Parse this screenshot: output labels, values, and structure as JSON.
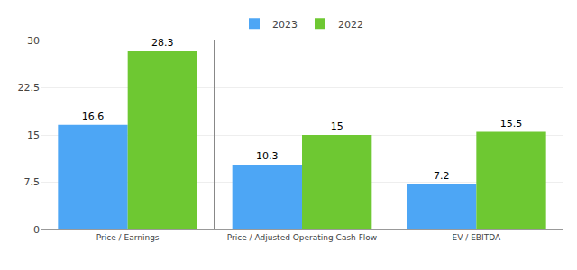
{
  "chart_data": [
    {
      "type": "bar",
      "categories": [
        "Price / Earnings"
      ],
      "series": [
        {
          "name": "2023",
          "color": "#4da6f5",
          "values": [
            16.6
          ]
        },
        {
          "name": "2022",
          "color": "#6ec832",
          "values": [
            28.3
          ]
        }
      ],
      "ylim": [
        0,
        30
      ],
      "yticks": [
        0,
        7.5,
        15,
        22.5,
        30
      ],
      "grid": true,
      "data_labels": true,
      "legend": "top"
    },
    {
      "type": "bar",
      "categories": [
        "Price / Adjusted Operating Cash Flow"
      ],
      "series": [
        {
          "name": "2023",
          "color": "#4da6f5",
          "values": [
            10.3
          ]
        },
        {
          "name": "2022",
          "color": "#6ec832",
          "values": [
            15
          ]
        }
      ],
      "ylim": [
        0,
        30
      ],
      "yticks": [
        0,
        7.5,
        15,
        22.5,
        30
      ],
      "grid": true,
      "data_labels": true,
      "legend": "top",
      "tick_labels": "x"
    },
    {
      "type": "bar",
      "categories": [
        "EV / EBITDA"
      ],
      "series": [
        {
          "name": "2023",
          "color": "#4da6f5",
          "values": [
            7.2
          ]
        },
        {
          "name": "2022",
          "color": "#6ec832",
          "values": [
            15.5
          ]
        }
      ],
      "ylim": [
        0,
        30
      ],
      "yticks": [
        0,
        7.5,
        15,
        22.5,
        30
      ],
      "grid": true,
      "data_labels": true,
      "legend": "top",
      "tick_labels": "x"
    }
  ]
}
